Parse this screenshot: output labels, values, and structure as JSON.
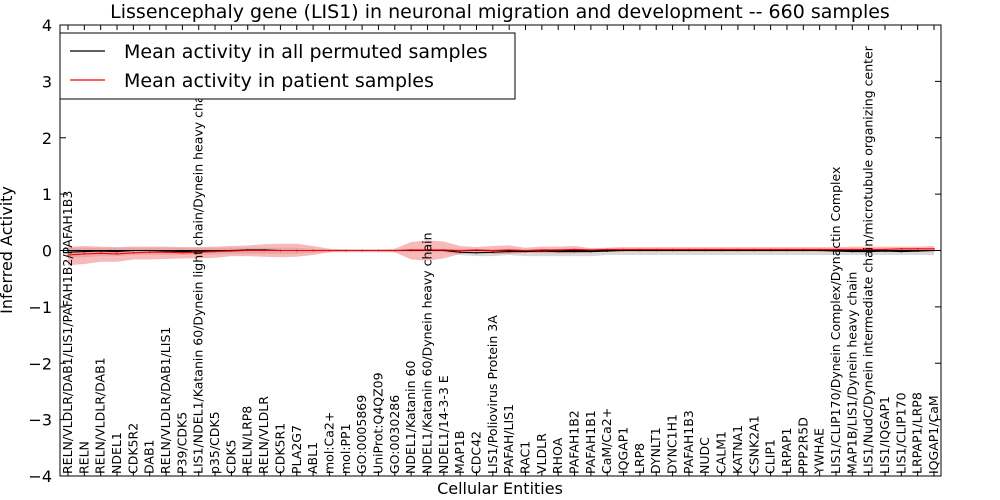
{
  "chart_data": {
    "type": "line",
    "title": "Lissencephaly gene (LIS1) in neuronal migration and development -- 660 samples",
    "xlabel": "Cellular Entities",
    "ylabel": "Inferred Activity",
    "ylim": [
      -4,
      4
    ],
    "yticks": [
      4,
      3,
      2,
      1,
      0,
      -1,
      -2,
      -3,
      -4
    ],
    "ytick_labels": [
      "4",
      "3",
      "2",
      "1",
      "0",
      "−1",
      "−2",
      "−3",
      "−4"
    ],
    "legend_position": "upper-left",
    "categories": [
      "RELN/VLDLR/DAB1/LIS1/PAFAH1B2/PAFAH1B3",
      "RELN",
      "RELN/VLDLR/DAB1",
      "NDEL1",
      "CDK5R2",
      "DAB1",
      "RELN/VLDLR/DAB1/LIS1",
      "P39/CDK5",
      "LIS1/NDEL1/Katanin 60/Dynein light chain/Dynein heavy chain",
      "p35/CDK5",
      "CDK5",
      "RELN/LRP8",
      "RELN/VLDLR",
      "CDK5R1",
      "PLA2G7",
      "ABL1",
      "mol:Ca2+",
      "mol:PP1",
      "GO:0005869",
      "UniProt:Q4QZ09",
      "GO:0030286",
      "NDEL1/Katanin 60",
      "NDEL1/Katanin 60/Dynein heavy chain",
      "NDEL1/14-3-3 E",
      "MAP1B",
      "CDC42",
      "LIS1/Poliovirus Protein 3A",
      "PAFAH/LIS1",
      "RAC1",
      "VLDLR",
      "RHOA",
      "PAFAH1B2",
      "PAFAH1B1",
      "CaM/Ca2+",
      "IQGAP1",
      "LRP8",
      "DYNLT1",
      "DYNC1H1",
      "PAFAH1B3",
      "NUDC",
      "CALM1",
      "KATNA1",
      "CSNK2A1",
      "CLIP1",
      "LRPAP1",
      "PPP2R5D",
      "YWHAE",
      "LIS1/CLIP170/Dynein Complex/Dynactin Complex",
      "MAP1B/LIS1/Dynein heavy chain",
      "LIS1/NudC/Dynein intermediate chain/microtubule organizing center",
      "LIS1/IQGAP1",
      "LIS1/CLIP170",
      "LRPAP1/LRP8",
      "IQGAP1/CaM"
    ],
    "series": [
      {
        "name": "Mean activity in all permuted samples",
        "color": "#000000",
        "band_color": "#aaaaaa",
        "values": [
          -0.03,
          -0.02,
          -0.01,
          -0.02,
          0.0,
          0.0,
          -0.01,
          -0.02,
          -0.01,
          -0.01,
          0.0,
          0.01,
          0.01,
          0.0,
          0.0,
          0.0,
          0.0,
          0.0,
          0.0,
          0.0,
          0.0,
          0.0,
          0.0,
          0.0,
          -0.03,
          -0.04,
          -0.03,
          -0.02,
          -0.02,
          -0.01,
          -0.02,
          -0.02,
          -0.02,
          -0.01,
          0.0,
          0.0,
          0.0,
          0.0,
          0.0,
          0.0,
          0.0,
          0.0,
          0.0,
          0.0,
          0.0,
          0.0,
          0.0,
          -0.01,
          -0.02,
          -0.02,
          -0.01,
          -0.02,
          -0.01,
          0.0
        ],
        "band_upper": [
          0.05,
          0.05,
          0.05,
          0.05,
          0.05,
          0.05,
          0.05,
          0.05,
          0.05,
          0.05,
          0.05,
          0.05,
          0.05,
          0.05,
          0.05,
          0.03,
          0.02,
          0.02,
          0.02,
          0.02,
          0.02,
          0.02,
          0.02,
          0.02,
          0.02,
          0.02,
          0.02,
          0.02,
          0.02,
          0.02,
          0.02,
          0.02,
          0.02,
          0.02,
          0.02,
          0.02,
          0.02,
          0.02,
          0.02,
          0.02,
          0.02,
          0.02,
          0.02,
          0.02,
          0.02,
          0.02,
          0.02,
          0.02,
          0.02,
          0.02,
          0.02,
          0.02,
          0.02,
          0.02
        ],
        "band_lower": [
          -0.12,
          -0.12,
          -0.1,
          -0.1,
          -0.08,
          -0.08,
          -0.08,
          -0.08,
          -0.08,
          -0.07,
          -0.06,
          -0.06,
          -0.06,
          -0.06,
          -0.06,
          -0.04,
          -0.03,
          -0.03,
          -0.03,
          -0.03,
          -0.03,
          -0.03,
          -0.03,
          -0.03,
          -0.08,
          -0.1,
          -0.1,
          -0.08,
          -0.1,
          -0.1,
          -0.1,
          -0.1,
          -0.1,
          -0.08,
          -0.08,
          -0.08,
          -0.08,
          -0.08,
          -0.08,
          -0.08,
          -0.08,
          -0.08,
          -0.08,
          -0.08,
          -0.08,
          -0.08,
          -0.08,
          -0.08,
          -0.08,
          -0.08,
          -0.08,
          -0.08,
          -0.08,
          -0.08
        ]
      },
      {
        "name": "Mean activity in patient samples",
        "color": "#ff0000",
        "band_color": "#f08080",
        "values": [
          -0.08,
          -0.06,
          -0.05,
          -0.06,
          -0.04,
          -0.03,
          -0.03,
          -0.04,
          -0.03,
          -0.02,
          -0.01,
          0.0,
          0.0,
          0.0,
          0.0,
          0.0,
          0.0,
          0.0,
          0.0,
          0.0,
          0.0,
          0.01,
          0.01,
          0.01,
          0.0,
          0.01,
          0.0,
          0.01,
          0.0,
          0.01,
          0.01,
          0.02,
          0.01,
          0.02,
          0.02,
          0.02,
          0.02,
          0.02,
          0.02,
          0.02,
          0.02,
          0.02,
          0.02,
          0.02,
          0.02,
          0.02,
          0.02,
          0.02,
          0.02,
          0.02,
          0.02,
          0.03,
          0.03,
          0.03
        ],
        "band_upper": [
          0.06,
          0.08,
          0.07,
          0.06,
          0.07,
          0.07,
          0.07,
          0.06,
          0.06,
          0.07,
          0.08,
          0.09,
          0.11,
          0.12,
          0.12,
          0.08,
          0.03,
          0.02,
          0.02,
          0.02,
          0.03,
          0.15,
          0.18,
          0.16,
          0.08,
          0.06,
          0.08,
          0.09,
          0.05,
          0.07,
          0.07,
          0.08,
          0.04,
          0.05,
          0.06,
          0.06,
          0.06,
          0.06,
          0.06,
          0.06,
          0.06,
          0.06,
          0.06,
          0.06,
          0.06,
          0.06,
          0.06,
          0.06,
          0.07,
          0.07,
          0.07,
          0.07,
          0.07,
          0.08
        ],
        "band_lower": [
          -0.26,
          -0.24,
          -0.2,
          -0.2,
          -0.16,
          -0.16,
          -0.15,
          -0.14,
          -0.14,
          -0.13,
          -0.1,
          -0.1,
          -0.11,
          -0.12,
          -0.11,
          -0.08,
          -0.03,
          -0.02,
          -0.02,
          -0.02,
          -0.03,
          -0.16,
          -0.18,
          -0.14,
          -0.06,
          -0.04,
          -0.06,
          -0.06,
          -0.04,
          -0.05,
          -0.05,
          -0.05,
          -0.03,
          -0.02,
          -0.02,
          -0.02,
          -0.02,
          -0.02,
          -0.02,
          -0.02,
          -0.02,
          -0.02,
          -0.02,
          -0.02,
          -0.02,
          -0.02,
          -0.02,
          -0.02,
          -0.02,
          -0.02,
          -0.02,
          -0.02,
          -0.02,
          -0.02
        ]
      }
    ]
  }
}
